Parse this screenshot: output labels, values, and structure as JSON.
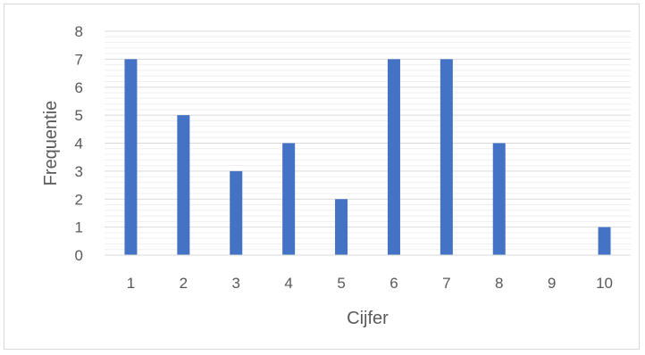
{
  "chart_data": {
    "type": "bar",
    "title": "",
    "xlabel": "Cijfer",
    "ylabel": "Frequentie",
    "categories": [
      "1",
      "2",
      "3",
      "4",
      "5",
      "6",
      "7",
      "8",
      "9",
      "10"
    ],
    "values": [
      7,
      5,
      3,
      4,
      2,
      7,
      7,
      4,
      0,
      1
    ],
    "ylim": [
      0,
      8
    ],
    "yticks": [
      "0",
      "1",
      "2",
      "3",
      "4",
      "5",
      "6",
      "7",
      "8"
    ],
    "grid": true,
    "minor_grid": true,
    "legend": "none",
    "colors": {
      "bar": "#4472C4",
      "major_grid": "#D9D9D9",
      "minor_grid": "#EFEFEF",
      "axis_line": "#D9D9D9",
      "text": "#595959"
    }
  }
}
